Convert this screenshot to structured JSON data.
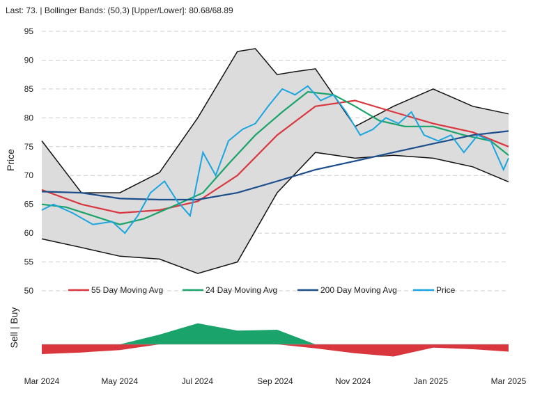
{
  "header": {
    "text": "Last: 73. | Bollinger Bands: (50,3) [Upper/Lower]: 80.68/68.89"
  },
  "chart_data": {
    "type": "line",
    "ylabel": "Price",
    "signal_label": "Sell | Buy",
    "ylim": [
      50,
      95
    ],
    "y_ticks": [
      50,
      55,
      60,
      65,
      70,
      75,
      80,
      85,
      90,
      95
    ],
    "x_ticks": [
      "Mar 2024",
      "May 2024",
      "Jul 2024",
      "Sep 2024",
      "Nov 2024",
      "Jan 2025",
      "Mar 2025"
    ],
    "grid": true,
    "legend_position": "bottom",
    "x_domain": [
      "2024-03-01",
      "2025-03-01"
    ],
    "series": [
      {
        "name": "55 Day Moving Avg",
        "color": "#d9363e",
        "points": [
          [
            "2024-03-01",
            67.5
          ],
          [
            "2024-04-01",
            65
          ],
          [
            "2024-05-01",
            63.5
          ],
          [
            "2024-06-01",
            64
          ],
          [
            "2024-07-01",
            65.5
          ],
          [
            "2024-08-01",
            70
          ],
          [
            "2024-09-01",
            77
          ],
          [
            "2024-10-01",
            82
          ],
          [
            "2024-11-01",
            83
          ],
          [
            "2024-12-01",
            81
          ],
          [
            "2025-01-01",
            79
          ],
          [
            "2025-02-01",
            77.5
          ],
          [
            "2025-03-01",
            75
          ]
        ]
      },
      {
        "name": "24 Day Moving Avg",
        "color": "#1aa36a",
        "points": [
          [
            "2024-03-01",
            65
          ],
          [
            "2024-03-20",
            64.5
          ],
          [
            "2024-04-10",
            63
          ],
          [
            "2024-05-01",
            61.5
          ],
          [
            "2024-05-20",
            62.5
          ],
          [
            "2024-06-15",
            65
          ],
          [
            "2024-07-05",
            67
          ],
          [
            "2024-07-25",
            72
          ],
          [
            "2024-08-15",
            77
          ],
          [
            "2024-09-05",
            81
          ],
          [
            "2024-09-25",
            84.5
          ],
          [
            "2024-10-15",
            84
          ],
          [
            "2024-11-01",
            82
          ],
          [
            "2024-11-20",
            79.5
          ],
          [
            "2024-12-10",
            78.5
          ],
          [
            "2025-01-01",
            78.5
          ],
          [
            "2025-01-25",
            77
          ],
          [
            "2025-02-15",
            76
          ],
          [
            "2025-03-01",
            73.5
          ]
        ]
      },
      {
        "name": "200 Day Moving Avg",
        "color": "#1c4e8c",
        "points": [
          [
            "2024-03-01",
            67.2
          ],
          [
            "2024-04-01",
            67
          ],
          [
            "2024-05-01",
            66
          ],
          [
            "2024-06-01",
            65.8
          ],
          [
            "2024-07-01",
            65.8
          ],
          [
            "2024-08-01",
            67
          ],
          [
            "2024-09-01",
            69
          ],
          [
            "2024-10-01",
            71
          ],
          [
            "2024-11-01",
            72.5
          ],
          [
            "2024-12-01",
            74
          ],
          [
            "2025-01-01",
            75.5
          ],
          [
            "2025-02-01",
            77
          ],
          [
            "2025-03-01",
            77.7
          ]
        ]
      },
      {
        "name": "Price",
        "color": "#1aa5e0",
        "points": [
          [
            "2024-03-01",
            64
          ],
          [
            "2024-03-10",
            65
          ],
          [
            "2024-03-25",
            63.5
          ],
          [
            "2024-04-10",
            61.5
          ],
          [
            "2024-04-25",
            62
          ],
          [
            "2024-05-05",
            60
          ],
          [
            "2024-05-15",
            63
          ],
          [
            "2024-05-25",
            67
          ],
          [
            "2024-06-05",
            69
          ],
          [
            "2024-06-15",
            65.5
          ],
          [
            "2024-06-25",
            63
          ],
          [
            "2024-07-05",
            74
          ],
          [
            "2024-07-15",
            70
          ],
          [
            "2024-07-25",
            76
          ],
          [
            "2024-08-05",
            78
          ],
          [
            "2024-08-15",
            79
          ],
          [
            "2024-08-25",
            82
          ],
          [
            "2024-09-05",
            85
          ],
          [
            "2024-09-15",
            84
          ],
          [
            "2024-09-25",
            85.5
          ],
          [
            "2024-10-05",
            83
          ],
          [
            "2024-10-15",
            84
          ],
          [
            "2024-10-25",
            81
          ],
          [
            "2024-11-05",
            77
          ],
          [
            "2024-11-15",
            78
          ],
          [
            "2024-11-25",
            80
          ],
          [
            "2024-12-05",
            79
          ],
          [
            "2024-12-15",
            81
          ],
          [
            "2024-12-25",
            77
          ],
          [
            "2025-01-05",
            76
          ],
          [
            "2025-01-15",
            77
          ],
          [
            "2025-01-25",
            74
          ],
          [
            "2025-02-05",
            77
          ],
          [
            "2025-02-15",
            76
          ],
          [
            "2025-02-25",
            71
          ],
          [
            "2025-03-01",
            73
          ]
        ]
      }
    ],
    "bands": {
      "upper": [
        [
          "2024-03-01",
          76
        ],
        [
          "2024-04-01",
          67
        ],
        [
          "2024-05-01",
          67
        ],
        [
          "2024-06-01",
          70.5
        ],
        [
          "2024-07-01",
          80
        ],
        [
          "2024-08-01",
          91.5
        ],
        [
          "2024-08-15",
          92
        ],
        [
          "2024-09-01",
          87.5
        ],
        [
          "2024-09-15",
          88
        ],
        [
          "2024-10-01",
          88.5
        ],
        [
          "2024-11-01",
          78.5
        ],
        [
          "2024-12-01",
          82
        ],
        [
          "2025-01-01",
          85
        ],
        [
          "2025-02-01",
          82
        ],
        [
          "2025-03-01",
          80.68
        ]
      ],
      "lower": [
        [
          "2024-03-01",
          59
        ],
        [
          "2024-04-01",
          57.5
        ],
        [
          "2024-05-01",
          56
        ],
        [
          "2024-06-01",
          55.5
        ],
        [
          "2024-07-01",
          53
        ],
        [
          "2024-08-01",
          55
        ],
        [
          "2024-09-01",
          67
        ],
        [
          "2024-10-01",
          74
        ],
        [
          "2024-11-01",
          73
        ],
        [
          "2024-12-01",
          73.5
        ],
        [
          "2025-01-01",
          73
        ],
        [
          "2025-02-01",
          71.5
        ],
        [
          "2025-03-01",
          68.89
        ]
      ]
    },
    "signal": [
      [
        "2024-03-01",
        -1.2
      ],
      [
        "2024-04-01",
        -1
      ],
      [
        "2024-05-01",
        -0.7
      ],
      [
        "2024-06-01",
        1.2
      ],
      [
        "2024-07-01",
        2.6
      ],
      [
        "2024-08-01",
        1.7
      ],
      [
        "2024-09-01",
        1.8
      ],
      [
        "2024-10-01",
        -0.5
      ],
      [
        "2024-11-01",
        -1.1
      ],
      [
        "2024-12-01",
        -1.5
      ],
      [
        "2025-01-01",
        -0.4
      ],
      [
        "2025-02-01",
        -0.6
      ],
      [
        "2025-03-01",
        -0.9
      ]
    ]
  }
}
